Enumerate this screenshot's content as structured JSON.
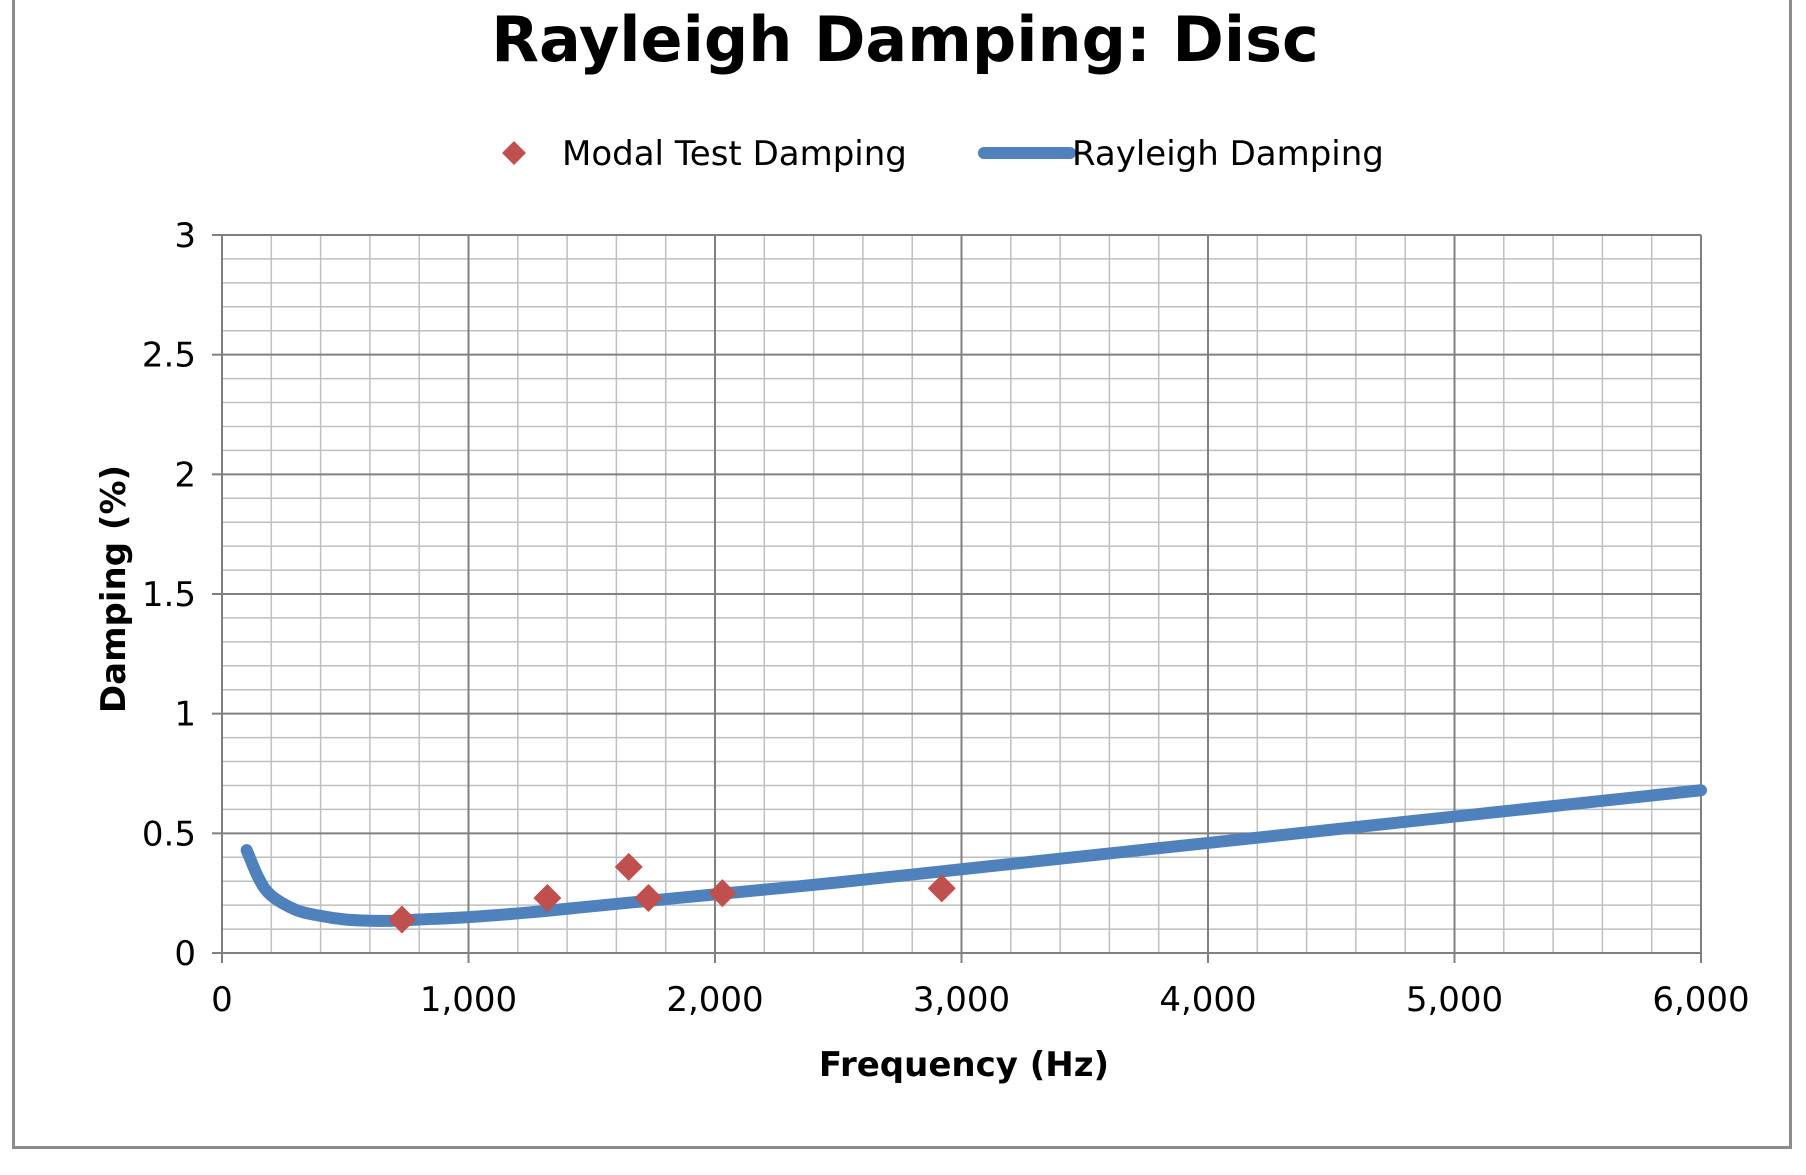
{
  "chart_data": {
    "type": "scatter",
    "title": "Rayleigh Damping: Disc",
    "xlabel": "Frequency (Hz)",
    "ylabel": "Damping (%)",
    "xlim": [
      0,
      6000
    ],
    "ylim": [
      0,
      3
    ],
    "x_ticks": [
      0,
      1000,
      2000,
      3000,
      4000,
      5000,
      6000
    ],
    "x_tick_labels": [
      "0",
      "1,000",
      "2,000",
      "3,000",
      "4,000",
      "5,000",
      "6,000"
    ],
    "y_ticks": [
      0,
      0.5,
      1,
      1.5,
      2,
      2.5,
      3
    ],
    "y_tick_labels": [
      "0",
      "0.5",
      "1",
      "1.5",
      "2",
      "2.5",
      "3"
    ],
    "grid": true,
    "legend_position": "top",
    "series": [
      {
        "name": "Modal Test Damping",
        "kind": "scatter",
        "color": "#c0504d",
        "marker": "diamond",
        "points": [
          {
            "x": 730,
            "y": 0.14
          },
          {
            "x": 1320,
            "y": 0.23
          },
          {
            "x": 1650,
            "y": 0.36
          },
          {
            "x": 1730,
            "y": 0.23
          },
          {
            "x": 2030,
            "y": 0.25
          },
          {
            "x": 2920,
            "y": 0.27
          }
        ]
      },
      {
        "name": "Rayleigh Damping",
        "kind": "line",
        "color": "#4f81bd",
        "points": [
          {
            "x": 100,
            "y": 0.43
          },
          {
            "x": 150,
            "y": 0.31
          },
          {
            "x": 200,
            "y": 0.24
          },
          {
            "x": 300,
            "y": 0.18
          },
          {
            "x": 400,
            "y": 0.155
          },
          {
            "x": 500,
            "y": 0.14
          },
          {
            "x": 600,
            "y": 0.135
          },
          {
            "x": 700,
            "y": 0.135
          },
          {
            "x": 800,
            "y": 0.14
          },
          {
            "x": 1000,
            "y": 0.15
          },
          {
            "x": 1250,
            "y": 0.17
          },
          {
            "x": 1500,
            "y": 0.195
          },
          {
            "x": 1750,
            "y": 0.22
          },
          {
            "x": 2000,
            "y": 0.245
          },
          {
            "x": 2500,
            "y": 0.295
          },
          {
            "x": 3000,
            "y": 0.35
          },
          {
            "x": 3500,
            "y": 0.405
          },
          {
            "x": 4000,
            "y": 0.46
          },
          {
            "x": 4500,
            "y": 0.515
          },
          {
            "x": 5000,
            "y": 0.57
          },
          {
            "x": 5500,
            "y": 0.625
          },
          {
            "x": 6000,
            "y": 0.68
          }
        ]
      }
    ]
  }
}
